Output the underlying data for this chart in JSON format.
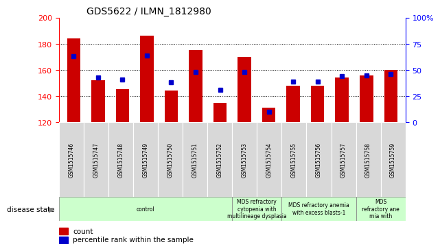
{
  "title": "GDS5622 / ILMN_1812980",
  "samples": [
    "GSM1515746",
    "GSM1515747",
    "GSM1515748",
    "GSM1515749",
    "GSM1515750",
    "GSM1515751",
    "GSM1515752",
    "GSM1515753",
    "GSM1515754",
    "GSM1515755",
    "GSM1515756",
    "GSM1515757",
    "GSM1515758",
    "GSM1515759"
  ],
  "counts": [
    184,
    152,
    145,
    186,
    144,
    175,
    135,
    170,
    131,
    148,
    148,
    154,
    156,
    160
  ],
  "percentiles": [
    63,
    43,
    41,
    64,
    38,
    48,
    31,
    48,
    10,
    39,
    39,
    44,
    45,
    46
  ],
  "ymin": 120,
  "ymax": 200,
  "yticks": [
    120,
    140,
    160,
    180,
    200
  ],
  "right_yticks": [
    0,
    25,
    50,
    75,
    100
  ],
  "bar_color": "#cc0000",
  "dot_color": "#0000cc",
  "group_starts": [
    0,
    7,
    9,
    12
  ],
  "group_ends": [
    7,
    9,
    12,
    14
  ],
  "group_labels": [
    "control",
    "MDS refractory\ncytopenia with\nmultilineage dysplasia",
    "MDS refractory anemia\nwith excess blasts-1",
    "MDS\nrefractory ane\nmia with"
  ],
  "light_green": "#ccffcc",
  "gray_bg": "#d8d8d8",
  "legend_count_label": "count",
  "legend_pct_label": "percentile rank within the sample",
  "disease_state_label": "disease state"
}
